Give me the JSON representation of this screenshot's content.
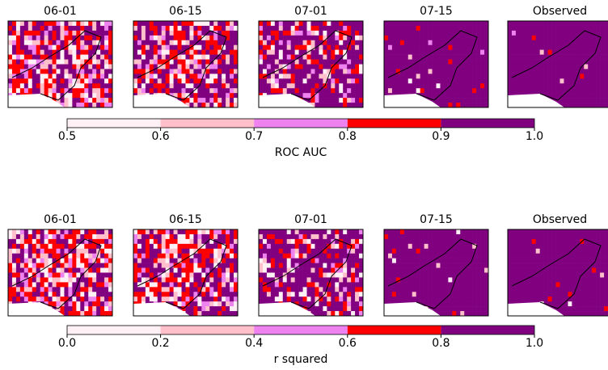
{
  "chart_data": [
    {
      "type": "map-panels",
      "panel_titles": [
        "06-01",
        "06-15",
        "07-01",
        "07-15",
        "Observed"
      ],
      "colorbar_label": "ROC AUC",
      "colors": [
        "#fff0f5",
        "#ffc0cb",
        "#ee82ee",
        "#ff0000",
        "#800080"
      ],
      "xlim": [
        0.5,
        1
      ],
      "xticks": [
        0.5,
        0.6,
        0.7,
        0.8,
        0.9,
        {
          "value": 1,
          "label": "1.0"
        }
      ]
    },
    {
      "type": "map-panels",
      "panel_titles": [
        "06-01",
        "06-15",
        "07-01",
        "07-15",
        "Observed"
      ],
      "colorbar_label": "r squared",
      "colors": [
        "#fff0f5",
        "#ffc0cb",
        "#ee82ee",
        "#ff0000",
        "#800080"
      ],
      "xlim": [
        0,
        1
      ],
      "xticks": [
        {
          "value": 0,
          "label": "0.0"
        },
        0.2,
        0.4,
        0.6,
        0.8,
        {
          "value": 1,
          "label": "1.0"
        }
      ]
    }
  ]
}
